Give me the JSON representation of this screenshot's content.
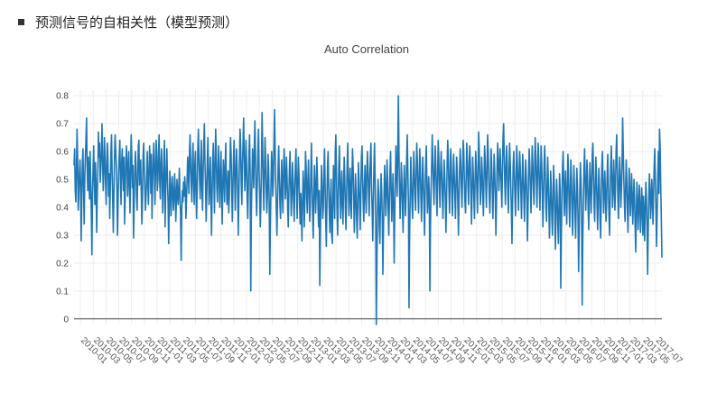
{
  "section": {
    "title": "预测信号的自相关性（模型预测）"
  },
  "colors": {
    "line": "#1f77b4",
    "grid": "#eeeeee",
    "zero_line": "#444444"
  },
  "chart_data": {
    "type": "line",
    "title": "Auto Correlation",
    "xlabel": "",
    "ylabel": "",
    "ylim": [
      -0.02,
      0.82
    ],
    "yticks": [
      0,
      0.1,
      0.2,
      0.3,
      0.4,
      0.5,
      0.6,
      0.7,
      0.8
    ],
    "ytick_labels": [
      "0",
      "0.1",
      "0.2",
      "0.3",
      "0.4",
      "0.5",
      "0.6",
      "0.7",
      "0.8"
    ],
    "grid": true,
    "x_start": "2010-01-04",
    "x_end": "2017-07-31",
    "xtick_labels": [
      "2010-01",
      "2010-03",
      "2010-05",
      "2010-07",
      "2010-09",
      "2010-11",
      "2011-01",
      "2011-03",
      "2011-05",
      "2011-07",
      "2011-09",
      "2011-11",
      "2012-01",
      "2012-03",
      "2012-05",
      "2012-07",
      "2012-09",
      "2012-11",
      "2013-01",
      "2013-03",
      "2013-05",
      "2013-07",
      "2013-09",
      "2013-11",
      "2014-01",
      "2014-03",
      "2014-05",
      "2014-07",
      "2014-09",
      "2014-11",
      "2015-01",
      "2015-03",
      "2015-05",
      "2015-07",
      "2015-09",
      "2015-11",
      "2016-01",
      "2016-03",
      "2016-05",
      "2016-07",
      "2016-09",
      "2016-11",
      "2017-01",
      "2017-03",
      "2017-05",
      "2017-07"
    ],
    "series": [
      {
        "values": [
          0.55,
          0.61,
          0.46,
          0.42,
          0.53,
          0.68,
          0.58,
          0.39,
          0.44,
          0.52,
          0.57,
          0.49,
          0.28,
          0.43,
          0.56,
          0.61,
          0.47,
          0.34,
          0.5,
          0.58,
          0.64,
          0.72,
          0.55,
          0.46,
          0.58,
          0.51,
          0.43,
          0.6,
          0.49,
          0.38,
          0.23,
          0.45,
          0.54,
          0.62,
          0.5,
          0.41,
          0.56,
          0.48,
          0.31,
          0.44,
          0.53,
          0.67,
          0.58,
          0.63,
          0.49,
          0.54,
          0.6,
          0.7,
          0.57,
          0.46,
          0.52,
          0.65,
          0.59,
          0.48,
          0.41,
          0.55,
          0.63,
          0.57,
          0.44,
          0.52,
          0.36,
          0.48,
          0.6,
          0.66,
          0.52,
          0.42,
          0.31,
          0.45,
          0.58,
          0.66,
          0.61,
          0.55,
          0.47,
          0.3,
          0.42,
          0.53,
          0.59,
          0.64,
          0.5,
          0.41,
          0.56,
          0.61,
          0.52,
          0.46,
          0.58,
          0.34,
          0.45,
          0.55,
          0.62,
          0.57,
          0.44,
          0.51,
          0.6,
          0.48,
          0.38,
          0.52,
          0.66,
          0.59,
          0.47,
          0.55,
          0.29,
          0.41,
          0.52,
          0.6,
          0.56,
          0.44,
          0.39,
          0.5,
          0.62,
          0.64,
          0.48,
          0.53,
          0.57,
          0.45,
          0.34,
          0.43,
          0.58,
          0.63,
          0.55,
          0.47,
          0.39,
          0.44,
          0.51,
          0.6,
          0.49,
          0.41,
          0.53,
          0.62,
          0.56,
          0.45,
          0.59,
          0.36,
          0.48,
          0.56,
          0.63,
          0.54,
          0.41,
          0.52,
          0.64,
          0.58,
          0.46,
          0.5,
          0.6,
          0.66,
          0.49,
          0.43,
          0.55,
          0.61,
          0.52,
          0.38,
          0.46,
          0.58,
          0.64,
          0.33,
          0.45,
          0.54,
          0.61,
          0.5,
          0.42,
          0.27,
          0.4,
          0.53,
          0.48,
          0.37,
          0.44,
          0.51,
          0.46,
          0.39,
          0.43,
          0.52,
          0.47,
          0.35,
          0.42,
          0.5,
          0.45,
          0.41,
          0.47,
          0.54,
          0.43,
          0.38,
          0.21,
          0.39,
          0.46,
          0.42,
          0.49,
          0.44,
          0.51,
          0.47,
          0.36,
          0.43,
          0.5,
          0.58,
          0.52,
          0.45,
          0.6,
          0.66,
          0.55,
          0.48,
          0.42,
          0.57,
          0.63,
          0.49,
          0.41,
          0.55,
          0.6,
          0.45,
          0.36,
          0.47,
          0.61,
          0.68,
          0.58,
          0.5,
          0.43,
          0.55,
          0.64,
          0.47,
          0.39,
          0.53,
          0.62,
          0.7,
          0.56,
          0.48,
          0.35,
          0.44,
          0.57,
          0.65,
          0.52,
          0.41,
          0.49,
          0.58,
          0.45,
          0.3,
          0.44,
          0.56,
          0.63,
          0.5,
          0.38,
          0.55,
          0.68,
          0.6,
          0.47,
          0.42,
          0.53,
          0.62,
          0.49,
          0.4,
          0.52,
          0.6,
          0.46,
          0.34,
          0.48,
          0.57,
          0.51,
          0.42,
          0.55,
          0.63,
          0.5,
          0.41,
          0.46,
          0.53,
          0.38,
          0.44,
          0.56,
          0.65,
          0.59,
          0.46,
          0.35,
          0.47,
          0.58,
          0.64,
          0.5,
          0.39,
          0.52,
          0.61,
          0.55,
          0.45,
          0.3,
          0.44,
          0.57,
          0.68,
          0.62,
          0.49,
          0.41,
          0.55,
          0.63,
          0.72,
          0.58,
          0.46,
          0.52,
          0.64,
          0.56,
          0.43,
          0.36,
          0.48,
          0.59,
          0.66,
          0.52,
          0.1,
          0.38,
          0.5,
          0.61,
          0.55,
          0.47,
          0.62,
          0.71,
          0.58,
          0.44,
          0.37,
          0.49,
          0.6,
          0.68,
          0.53,
          0.45,
          0.33,
          0.41,
          0.56,
          0.74,
          0.62,
          0.48,
          0.39,
          0.52,
          0.65,
          0.57,
          0.46,
          0.38,
          0.44,
          0.59,
          0.54,
          0.42,
          0.16,
          0.35,
          0.48,
          0.6,
          0.56,
          0.44,
          0.51,
          0.63,
          0.75,
          0.6,
          0.47,
          0.39,
          0.3,
          0.43,
          0.55,
          0.62,
          0.5,
          0.41,
          0.36,
          0.48,
          0.57,
          0.45,
          0.38,
          0.52,
          0.61,
          0.55,
          0.43,
          0.47,
          0.58,
          0.51,
          0.4,
          0.33,
          0.45,
          0.54,
          0.6,
          0.48,
          0.37,
          0.44,
          0.56,
          0.5,
          0.42,
          0.35,
          0.47,
          0.55,
          0.61,
          0.46,
          0.36,
          0.49,
          0.58,
          0.52,
          0.41,
          0.34,
          0.45,
          0.39,
          0.28,
          0.42,
          0.53,
          0.47,
          0.33,
          0.44,
          0.6,
          0.55,
          0.43,
          0.38,
          0.5,
          0.57,
          0.46,
          0.35,
          0.41,
          0.52,
          0.63,
          0.48,
          0.37,
          0.29,
          0.43,
          0.55,
          0.49,
          0.38,
          0.45,
          0.58,
          0.51,
          0.4,
          0.33,
          0.46,
          0.12,
          0.3,
          0.44,
          0.55,
          0.47,
          0.36,
          0.4,
          0.52,
          0.61,
          0.48,
          0.35,
          0.26,
          0.42,
          0.55,
          0.6,
          0.47,
          0.38,
          0.31,
          0.44,
          0.5,
          0.3,
          0.27,
          0.41,
          0.55,
          0.47,
          0.36,
          0.6,
          0.66,
          0.52,
          0.39,
          0.3,
          0.43,
          0.55,
          0.62,
          0.48,
          0.36,
          0.45,
          0.53,
          0.41,
          0.34,
          0.47,
          0.58,
          0.51,
          0.39,
          0.32,
          0.44,
          0.55,
          0.63,
          0.49,
          0.37,
          0.46,
          0.54,
          0.42,
          0.36,
          0.5,
          0.61,
          0.55,
          0.43,
          0.31,
          0.4,
          0.52,
          0.45,
          0.35,
          0.29,
          0.43,
          0.56,
          0.49,
          0.4,
          0.32,
          0.46,
          0.58,
          0.62,
          0.5,
          0.41,
          0.35,
          0.48,
          0.55,
          0.44,
          0.38,
          0.52,
          0.6,
          0.54,
          0.45,
          0.37,
          0.5,
          0.58,
          0.63,
          0.47,
          0.39,
          0.28,
          0.42,
          0.55,
          0.63,
          0.5,
          0.36,
          -0.02,
          0.2,
          0.38,
          0.5,
          0.45,
          0.33,
          0.27,
          0.41,
          0.52,
          0.46,
          0.36,
          0.16,
          0.31,
          0.45,
          0.55,
          0.48,
          0.37,
          0.44,
          0.57,
          0.5,
          0.39,
          0.3,
          0.42,
          0.53,
          0.6,
          0.46,
          0.35,
          0.43,
          0.52,
          0.41,
          0.2,
          0.38,
          0.5,
          0.62,
          0.55,
          0.44,
          0.58,
          0.8,
          0.6,
          0.47,
          0.36,
          0.44,
          0.56,
          0.5,
          0.39,
          0.31,
          0.45,
          0.55,
          0.48,
          0.37,
          0.44,
          0.57,
          0.66,
          0.53,
          0.42,
          0.04,
          0.3,
          0.45,
          0.58,
          0.5,
          0.41,
          0.36,
          0.48,
          0.6,
          0.53,
          0.44,
          0.39,
          0.52,
          0.63,
          0.57,
          0.46,
          0.38,
          0.5,
          0.61,
          0.55,
          0.43,
          0.35,
          0.47,
          0.58,
          0.5,
          0.42,
          0.3,
          0.44,
          0.56,
          0.62,
          0.49,
          0.38,
          0.43,
          0.51,
          0.45,
          0.1,
          0.33,
          0.46,
          0.55,
          0.66,
          0.57,
          0.48,
          0.41,
          0.53,
          0.62,
          0.55,
          0.45,
          0.37,
          0.5,
          0.64,
          0.58,
          0.47,
          0.4,
          0.52,
          0.6,
          0.53,
          0.44,
          0.36,
          0.48,
          0.57,
          0.51,
          0.43,
          0.31,
          0.42,
          0.55,
          0.64,
          0.58,
          0.47,
          0.38,
          0.5,
          0.61,
          0.56,
          0.45,
          0.37,
          0.49,
          0.59,
          0.52,
          0.44,
          0.36,
          0.48,
          0.58,
          0.53,
          0.42,
          0.3,
          0.43,
          0.54,
          0.61,
          0.56,
          0.47,
          0.4,
          0.52,
          0.64,
          0.6,
          0.5,
          0.42,
          0.38,
          0.51,
          0.63,
          0.57,
          0.48,
          0.41,
          0.55,
          0.62,
          0.56,
          0.45,
          0.34,
          0.47,
          0.58,
          0.52,
          0.43,
          0.36,
          0.49,
          0.6,
          0.55,
          0.46,
          0.38,
          0.52,
          0.67,
          0.6,
          0.5,
          0.41,
          0.47,
          0.58,
          0.53,
          0.44,
          0.37,
          0.5,
          0.62,
          0.57,
          0.48,
          0.4,
          0.53,
          0.66,
          0.6,
          0.5,
          0.43,
          0.38,
          0.51,
          0.61,
          0.54,
          0.45,
          0.36,
          0.48,
          0.59,
          0.53,
          0.44,
          0.3,
          0.42,
          0.55,
          0.63,
          0.57,
          0.46,
          0.52,
          0.61,
          0.55,
          0.47,
          0.4,
          0.53,
          0.65,
          0.7,
          0.58,
          0.48,
          0.41,
          0.55,
          0.62,
          0.56,
          0.46,
          0.38,
          0.51,
          0.63,
          0.57,
          0.48,
          0.39,
          0.27,
          0.42,
          0.55,
          0.6,
          0.52,
          0.44,
          0.37,
          0.5,
          0.62,
          0.56,
          0.47,
          0.39,
          0.52,
          0.6,
          0.54,
          0.45,
          0.36,
          0.48,
          0.59,
          0.53,
          0.43,
          0.35,
          0.47,
          0.57,
          0.51,
          0.42,
          0.28,
          0.4,
          0.52,
          0.61,
          0.55,
          0.46,
          0.38,
          0.5,
          0.62,
          0.56,
          0.47,
          0.41,
          0.53,
          0.65,
          0.59,
          0.49,
          0.4,
          0.52,
          0.63,
          0.57,
          0.47,
          0.39,
          0.51,
          0.62,
          0.55,
          0.45,
          0.33,
          0.44,
          0.56,
          0.62,
          0.52,
          0.41,
          0.35,
          0.47,
          0.58,
          0.5,
          0.39,
          0.29,
          0.41,
          0.53,
          0.47,
          0.36,
          0.3,
          0.43,
          0.55,
          0.48,
          0.37,
          0.25,
          0.38,
          0.5,
          0.44,
          0.34,
          0.27,
          0.4,
          0.52,
          0.46,
          0.11,
          0.3,
          0.43,
          0.55,
          0.6,
          0.49,
          0.37,
          0.45,
          0.53,
          0.42,
          0.34,
          0.47,
          0.59,
          0.52,
          0.41,
          0.33,
          0.46,
          0.57,
          0.5,
          0.38,
          0.3,
          0.43,
          0.55,
          0.48,
          0.37,
          0.29,
          0.42,
          0.54,
          0.47,
          0.36,
          0.17,
          0.33,
          0.45,
          0.56,
          0.49,
          0.38,
          0.05,
          0.28,
          0.42,
          0.54,
          0.61,
          0.5,
          0.39,
          0.46,
          0.57,
          0.51,
          0.4,
          0.32,
          0.45,
          0.56,
          0.49,
          0.38,
          0.46,
          0.59,
          0.63,
          0.52,
          0.41,
          0.35,
          0.48,
          0.58,
          0.51,
          0.4,
          0.32,
          0.45,
          0.54,
          0.47,
          0.36,
          0.29,
          0.43,
          0.55,
          0.6,
          0.49,
          0.38,
          0.44,
          0.53,
          0.46,
          0.35,
          0.41,
          0.52,
          0.59,
          0.48,
          0.37,
          0.3,
          0.43,
          0.55,
          0.62,
          0.51,
          0.4,
          0.45,
          0.57,
          0.5,
          0.39,
          0.47,
          0.6,
          0.66,
          0.55,
          0.44,
          0.36,
          0.49,
          0.58,
          0.51,
          0.4,
          0.46,
          0.55,
          0.72,
          0.61,
          0.5,
          0.41,
          0.35,
          0.47,
          0.57,
          0.5,
          0.39,
          0.31,
          0.44,
          0.54,
          0.47,
          0.37,
          0.43,
          0.52,
          0.45,
          0.34,
          0.41,
          0.5,
          0.44,
          0.33,
          0.24,
          0.38,
          0.49,
          0.43,
          0.32,
          0.39,
          0.48,
          0.42,
          0.31,
          0.37,
          0.47,
          0.41,
          0.3,
          0.44,
          0.38,
          0.28,
          0.4,
          0.49,
          0.43,
          0.33,
          0.16,
          0.32,
          0.44,
          0.52,
          0.46,
          0.36,
          0.41,
          0.5,
          0.44,
          0.34,
          0.45,
          0.55,
          0.61,
          0.5,
          0.39,
          0.26,
          0.38,
          0.5,
          0.6,
          0.45,
          0.68,
          0.62,
          0.48,
          0.36,
          0.22
        ]
      }
    ]
  }
}
